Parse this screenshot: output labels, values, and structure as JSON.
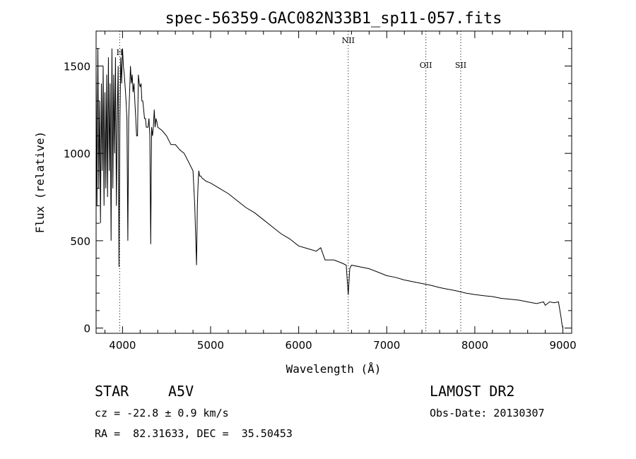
{
  "chart_data": {
    "type": "line",
    "title": "spec-56359-GAC082N33B1_sp11-057.fits",
    "xlabel": "Wavelength (Å)",
    "ylabel": "Flux (relative)",
    "xlim": [
      3700,
      9100
    ],
    "ylim": [
      -30,
      1700
    ],
    "x_ticks": [
      4000,
      5000,
      6000,
      7000,
      8000,
      9000
    ],
    "y_ticks": [
      0,
      500,
      1000,
      1500
    ],
    "grid": false,
    "line_markers": [
      {
        "label": "H",
        "x": 3968
      },
      {
        "label": "NII",
        "x": 6563
      },
      {
        "label": "OII",
        "x": 7444
      },
      {
        "label": "SII",
        "x": 7840
      }
    ],
    "series": [
      {
        "x": [
          3700,
          3710,
          3720,
          3730,
          3740,
          3750,
          3760,
          3770,
          3780,
          3790,
          3800,
          3810,
          3820,
          3830,
          3840,
          3850,
          3860,
          3870,
          3880,
          3890,
          3900,
          3910,
          3920,
          3930,
          3940,
          3950,
          3960,
          3970,
          3980,
          3990,
          4000,
          4010,
          4020,
          4030,
          4040,
          4050,
          4060,
          4070,
          4080,
          4090,
          4100,
          4110,
          4120,
          4130,
          4140,
          4150,
          4160,
          4170,
          4180,
          4190,
          4200,
          4210,
          4220,
          4230,
          4240,
          4250,
          4260,
          4270,
          4280,
          4290,
          4300,
          4310,
          4320,
          4330,
          4340,
          4350,
          4360,
          4370,
          4380,
          4390,
          4400,
          4450,
          4500,
          4550,
          4600,
          4650,
          4700,
          4750,
          4800,
          4820,
          4840,
          4850,
          4855,
          4861,
          4867,
          4875,
          4890,
          4900,
          4950,
          5000,
          5100,
          5200,
          5300,
          5400,
          5500,
          5600,
          5700,
          5800,
          5900,
          6000,
          6100,
          6200,
          6250,
          6300,
          6400,
          6500,
          6540,
          6563,
          6580,
          6600,
          6700,
          6800,
          6900,
          7000,
          7100,
          7200,
          7300,
          7400,
          7500,
          7600,
          7700,
          7800,
          7900,
          8000,
          8100,
          8200,
          8300,
          8400,
          8500,
          8600,
          8700,
          8780,
          8800,
          8850,
          8900,
          8950,
          8980,
          8990,
          9000
        ],
        "y": [
          1500,
          700,
          1600,
          800,
          1300,
          600,
          1400,
          900,
          1500,
          700,
          1350,
          800,
          1450,
          750,
          1550,
          900,
          1400,
          500,
          1600,
          800,
          1450,
          1000,
          1550,
          700,
          1200,
          1500,
          350,
          1200,
          1550,
          1400,
          1600,
          1500,
          1450,
          1380,
          1300,
          1200,
          500,
          1200,
          1350,
          1500,
          1400,
          1450,
          1350,
          1400,
          1300,
          1200,
          1100,
          1100,
          1450,
          1400,
          1380,
          1400,
          1300,
          1300,
          1250,
          1200,
          1200,
          1150,
          1150,
          1150,
          1200,
          1100,
          480,
          1150,
          1100,
          1150,
          1250,
          1150,
          1200,
          1180,
          1150,
          1130,
          1100,
          1050,
          1050,
          1020,
          1000,
          950,
          900,
          700,
          360,
          700,
          780,
          860,
          900,
          870,
          870,
          860,
          840,
          830,
          800,
          770,
          730,
          690,
          660,
          620,
          580,
          540,
          510,
          470,
          455,
          440,
          460,
          390,
          390,
          370,
          360,
          190,
          340,
          360,
          350,
          340,
          320,
          300,
          290,
          275,
          265,
          255,
          245,
          232,
          222,
          212,
          200,
          192,
          185,
          180,
          170,
          165,
          160,
          150,
          140,
          150,
          130,
          150,
          145,
          150,
          60,
          20,
          0
        ]
      }
    ]
  },
  "info": {
    "object_class": "STAR",
    "subclass": "A5V",
    "survey": "LAMOST DR2",
    "cz": "cz = -22.8 ± 0.9 km/s",
    "obs_date": "Obs-Date: 20130307",
    "coords": "RA =  82.31633, DEC =  35.50453"
  }
}
